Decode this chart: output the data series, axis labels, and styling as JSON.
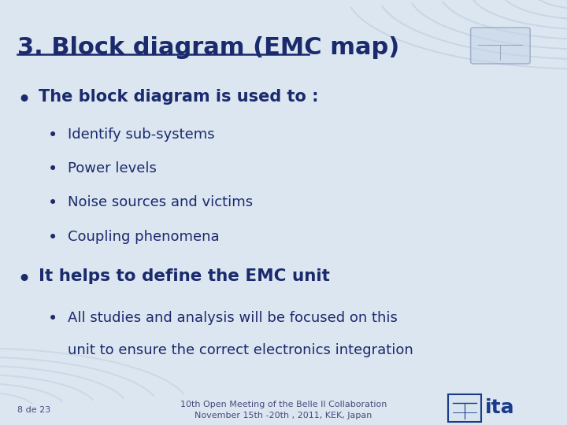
{
  "title": "3. Block diagram (EMC map)",
  "title_color": "#1a2a6c",
  "title_fontsize": 22,
  "background_color": "#dce6f1",
  "wave_color": "#b8c8dc",
  "text_color": "#1a2a6c",
  "bullet1": "The block diagram is used to :",
  "sub_bullets": [
    "Identify sub-systems",
    "Power levels",
    "Noise sources and victims",
    "Coupling phenomena"
  ],
  "bullet2": "It helps to define the EMC unit",
  "sub_bullet2_line1": "All studies and analysis will be focused on this",
  "sub_bullet2_line2": "unit to ensure the correct electronics integration",
  "footer_left": "8 de 23",
  "footer_center_line1": "10th Open Meeting of the Belle II Collaboration",
  "footer_center_line2": "November 15th -20th , 2011, KEK, Japan",
  "footer_fontsize": 8,
  "footer_color": "#4a4a7a"
}
